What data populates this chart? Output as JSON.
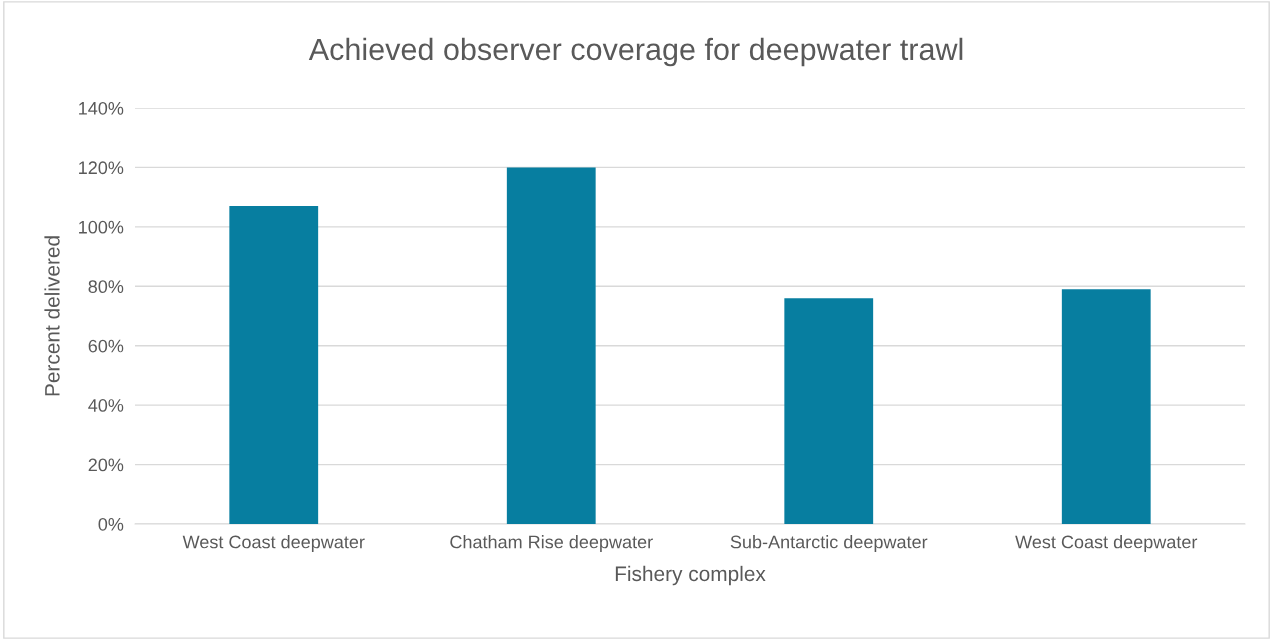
{
  "chart_data": {
    "type": "bar",
    "title": "Achieved observer coverage for deepwater trawl",
    "xlabel": "Fishery complex",
    "ylabel": "Percent delivered",
    "categories": [
      "West Coast deepwater",
      "Chatham Rise deepwater",
      "Sub-Antarctic deepwater",
      "West Coast deepwater"
    ],
    "values": [
      107,
      120,
      76,
      79
    ],
    "color": "#077ea0",
    "ylim": [
      0,
      140
    ],
    "yticks": [
      {
        "value": 0,
        "label": "0%"
      },
      {
        "value": 20,
        "label": "20%"
      },
      {
        "value": 40,
        "label": "40%"
      },
      {
        "value": 60,
        "label": "60%"
      },
      {
        "value": 80,
        "label": "80%"
      },
      {
        "value": 100,
        "label": "100%"
      },
      {
        "value": 120,
        "label": "120%"
      },
      {
        "value": 140,
        "label": "140%"
      }
    ],
    "grid": "y",
    "legend": false
  }
}
